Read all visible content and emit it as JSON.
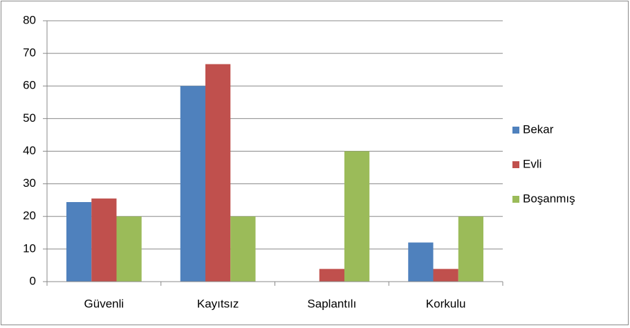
{
  "chart_data": {
    "type": "bar",
    "categories": [
      "Güvenli",
      "Kayıtsız",
      "Saplantılı",
      "Korkulu"
    ],
    "series": [
      {
        "name": "Bekar",
        "color": "#4f81bd",
        "values": [
          24.4,
          60,
          0,
          12
        ]
      },
      {
        "name": "Evli",
        "color": "#c0504d",
        "values": [
          25.5,
          66.7,
          3.9,
          3.9
        ]
      },
      {
        "name": "Boşanmış",
        "color": "#9bbb59",
        "values": [
          20,
          20,
          40,
          20
        ]
      }
    ],
    "ylim": [
      0,
      80
    ],
    "yticks": [
      0,
      10,
      20,
      30,
      40,
      50,
      60,
      70,
      80
    ],
    "grid": true,
    "legend": "right"
  }
}
